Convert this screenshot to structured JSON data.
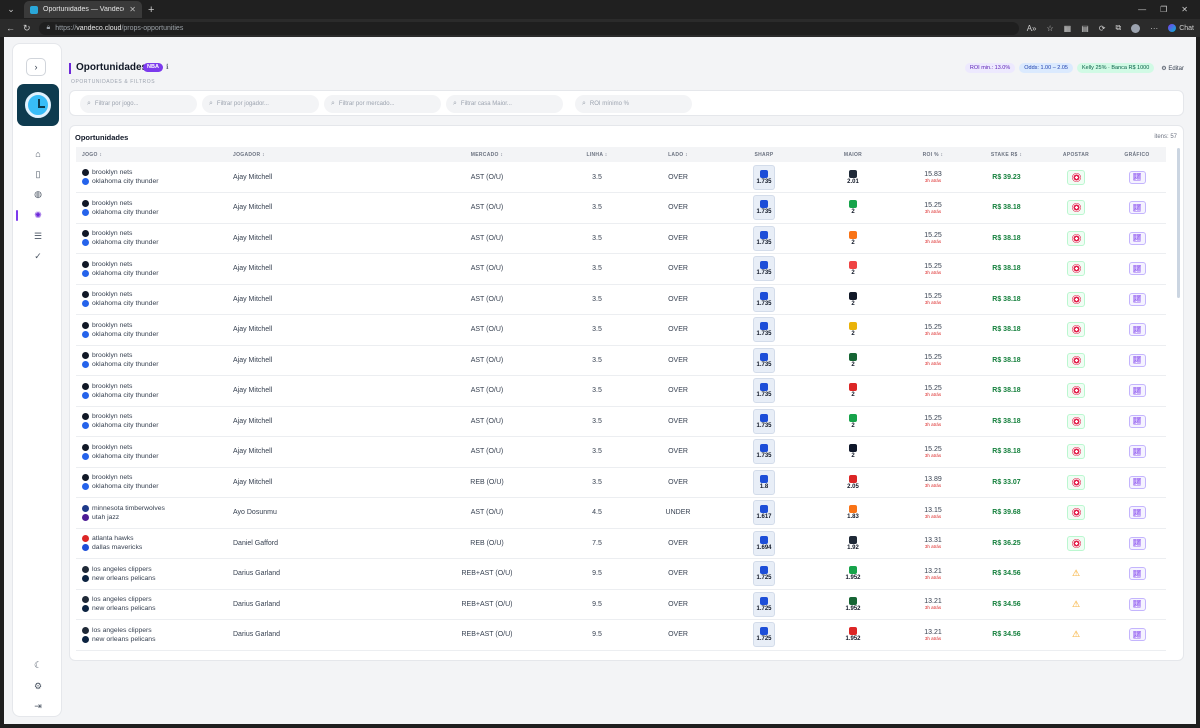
{
  "browser": {
    "tab_title": "Oportunidades — Vandeco Web",
    "url_scheme": "https://",
    "url_host": "vandeco.cloud",
    "url_path": "/props-opportunities",
    "chat_label": "Chat"
  },
  "header": {
    "title": "Oportunidades",
    "league_badge": "NBA",
    "subtitle": "OPORTUNIDADES & FILTROS",
    "chips": {
      "roi": "ROI min.: 13.0%",
      "odds": "Odds: 1.00 – 2.05",
      "kelly": "Kelly 25% · Banca R$ 1000"
    },
    "edit_label": "Editar"
  },
  "filters": {
    "game": "Filtrar por jogo...",
    "player": "Filtrar por jogador...",
    "market": "Filtrar por mercado...",
    "bookmaker": "Filtrar casa Maior...",
    "roi": "ROI mínimo %"
  },
  "table": {
    "title": "Oportunidades",
    "items_label": "itens: 57",
    "columns": {
      "jogo": "JOGO ↕",
      "jogador": "JOGADOR ↕",
      "mercado": "MERCADO ↕",
      "linha": "LINHA ↕",
      "lado": "LADO ↕",
      "sharp": "SHARP",
      "maior": "MAIOR",
      "roi": "ROI % ↕",
      "stake": "STAKE R$ ↕",
      "apostar": "APOSTAR",
      "grafico": "GRÁFICO"
    },
    "rows": [
      {
        "home": "brooklyn nets",
        "away": "oklahoma city thunder",
        "home_color": "#111827",
        "away_color": "#2563eb",
        "player": "Ajay Mitchell",
        "market": "AST (O/U)",
        "line": "3.5",
        "side": "OVER",
        "sharp": "1.735",
        "maior": "2.01",
        "maior_color": "#1f2937",
        "roi": "15.83",
        "age": "3h atrás",
        "stake": "R$ 39.23",
        "bet": "target"
      },
      {
        "home": "brooklyn nets",
        "away": "oklahoma city thunder",
        "home_color": "#111827",
        "away_color": "#2563eb",
        "player": "Ajay Mitchell",
        "market": "AST (O/U)",
        "line": "3.5",
        "side": "OVER",
        "sharp": "1.735",
        "maior": "2",
        "maior_color": "#16a34a",
        "roi": "15.25",
        "age": "3h atrás",
        "stake": "R$ 38.18",
        "bet": "target"
      },
      {
        "home": "brooklyn nets",
        "away": "oklahoma city thunder",
        "home_color": "#111827",
        "away_color": "#2563eb",
        "player": "Ajay Mitchell",
        "market": "AST (O/U)",
        "line": "3.5",
        "side": "OVER",
        "sharp": "1.735",
        "maior": "2",
        "maior_color": "#f97316",
        "roi": "15.25",
        "age": "3h atrás",
        "stake": "R$ 38.18",
        "bet": "target"
      },
      {
        "home": "brooklyn nets",
        "away": "oklahoma city thunder",
        "home_color": "#111827",
        "away_color": "#2563eb",
        "player": "Ajay Mitchell",
        "market": "AST (O/U)",
        "line": "3.5",
        "side": "OVER",
        "sharp": "1.735",
        "maior": "2",
        "maior_color": "#ef4444",
        "roi": "15.25",
        "age": "3h atrás",
        "stake": "R$ 38.18",
        "bet": "target"
      },
      {
        "home": "brooklyn nets",
        "away": "oklahoma city thunder",
        "home_color": "#111827",
        "away_color": "#2563eb",
        "player": "Ajay Mitchell",
        "market": "AST (O/U)",
        "line": "3.5",
        "side": "OVER",
        "sharp": "1.735",
        "maior": "2",
        "maior_color": "#111827",
        "roi": "15.25",
        "age": "3h atrás",
        "stake": "R$ 38.18",
        "bet": "target"
      },
      {
        "home": "brooklyn nets",
        "away": "oklahoma city thunder",
        "home_color": "#111827",
        "away_color": "#2563eb",
        "player": "Ajay Mitchell",
        "market": "AST (O/U)",
        "line": "3.5",
        "side": "OVER",
        "sharp": "1.735",
        "maior": "2",
        "maior_color": "#eab308",
        "roi": "15.25",
        "age": "3h atrás",
        "stake": "R$ 38.18",
        "bet": "target"
      },
      {
        "home": "brooklyn nets",
        "away": "oklahoma city thunder",
        "home_color": "#111827",
        "away_color": "#2563eb",
        "player": "Ajay Mitchell",
        "market": "AST (O/U)",
        "line": "3.5",
        "side": "OVER",
        "sharp": "1.735",
        "maior": "2",
        "maior_color": "#166534",
        "roi": "15.25",
        "age": "3h atrás",
        "stake": "R$ 38.18",
        "bet": "target"
      },
      {
        "home": "brooklyn nets",
        "away": "oklahoma city thunder",
        "home_color": "#111827",
        "away_color": "#2563eb",
        "player": "Ajay Mitchell",
        "market": "AST (O/U)",
        "line": "3.5",
        "side": "OVER",
        "sharp": "1.735",
        "maior": "2",
        "maior_color": "#dc2626",
        "roi": "15.25",
        "age": "3h atrás",
        "stake": "R$ 38.18",
        "bet": "target"
      },
      {
        "home": "brooklyn nets",
        "away": "oklahoma city thunder",
        "home_color": "#111827",
        "away_color": "#2563eb",
        "player": "Ajay Mitchell",
        "market": "AST (O/U)",
        "line": "3.5",
        "side": "OVER",
        "sharp": "1.735",
        "maior": "2",
        "maior_color": "#16a34a",
        "roi": "15.25",
        "age": "3h atrás",
        "stake": "R$ 38.18",
        "bet": "target"
      },
      {
        "home": "brooklyn nets",
        "away": "oklahoma city thunder",
        "home_color": "#111827",
        "away_color": "#2563eb",
        "player": "Ajay Mitchell",
        "market": "AST (O/U)",
        "line": "3.5",
        "side": "OVER",
        "sharp": "1.735",
        "maior": "2",
        "maior_color": "#0f172a",
        "roi": "15.25",
        "age": "3h atrás",
        "stake": "R$ 38.18",
        "bet": "target"
      },
      {
        "home": "brooklyn nets",
        "away": "oklahoma city thunder",
        "home_color": "#111827",
        "away_color": "#2563eb",
        "player": "Ajay Mitchell",
        "market": "REB (O/U)",
        "line": "3.5",
        "side": "OVER",
        "sharp": "1.8",
        "maior": "2.05",
        "maior_color": "#dc2626",
        "roi": "13.89",
        "age": "3h atrás",
        "stake": "R$ 33.07",
        "bet": "target"
      },
      {
        "home": "minnesota timberwolves",
        "away": "utah jazz",
        "home_color": "#1e3a8a",
        "away_color": "#4c1d95",
        "player": "Ayo Dosunmu",
        "market": "AST (O/U)",
        "line": "4.5",
        "side": "UNDER",
        "sharp": "1.617",
        "maior": "1.83",
        "maior_color": "#f97316",
        "roi": "13.15",
        "age": "3h atrás",
        "stake": "R$ 39.68",
        "bet": "target"
      },
      {
        "home": "atlanta hawks",
        "away": "dallas mavericks",
        "home_color": "#dc2626",
        "away_color": "#1d4ed8",
        "player": "Daniel Gafford",
        "market": "REB (O/U)",
        "line": "7.5",
        "side": "OVER",
        "sharp": "1.694",
        "maior": "1.92",
        "maior_color": "#1f2937",
        "roi": "13.31",
        "age": "3h atrás",
        "stake": "R$ 36.25",
        "bet": "target"
      },
      {
        "home": "los angeles clippers",
        "away": "new orleans pelicans",
        "home_color": "#1f2937",
        "away_color": "#0c2340",
        "player": "Darius Garland",
        "market": "REB+AST (O/U)",
        "line": "9.5",
        "side": "OVER",
        "sharp": "1.725",
        "maior": "1.952",
        "maior_color": "#16a34a",
        "roi": "13.21",
        "age": "3h atrás",
        "stake": "R$ 34.56",
        "bet": "warn"
      },
      {
        "home": "los angeles clippers",
        "away": "new orleans pelicans",
        "home_color": "#1f2937",
        "away_color": "#0c2340",
        "player": "Darius Garland",
        "market": "REB+AST (O/U)",
        "line": "9.5",
        "side": "OVER",
        "sharp": "1.725",
        "maior": "1.952",
        "maior_color": "#166534",
        "roi": "13.21",
        "age": "3h atrás",
        "stake": "R$ 34.56",
        "bet": "warn"
      },
      {
        "home": "los angeles clippers",
        "away": "new orleans pelicans",
        "home_color": "#1f2937",
        "away_color": "#0c2340",
        "player": "Darius Garland",
        "market": "REB+AST (O/U)",
        "line": "9.5",
        "side": "OVER",
        "sharp": "1.725",
        "maior": "1.952",
        "maior_color": "#dc2626",
        "roi": "13.21",
        "age": "3h atrás",
        "stake": "R$ 34.56",
        "bet": "warn"
      }
    ]
  }
}
